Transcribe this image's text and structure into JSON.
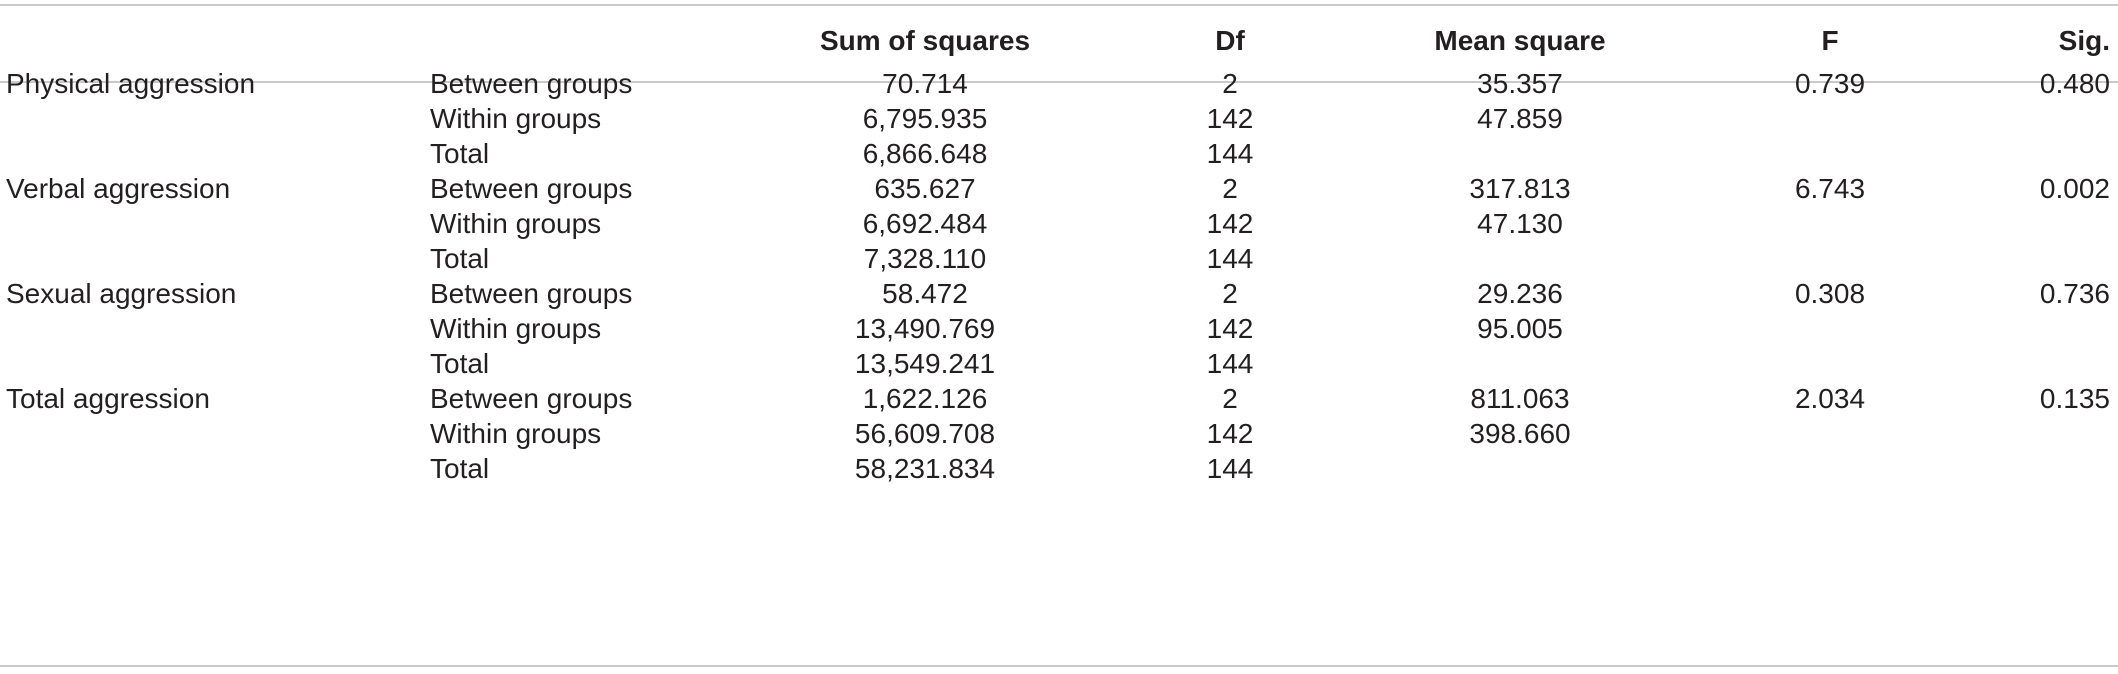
{
  "table": {
    "headers": {
      "measure": "",
      "source": "",
      "sum_of_squares": "Sum of squares",
      "df": "Df",
      "mean_square": "Mean square",
      "f": "F",
      "sig": "Sig."
    },
    "rows": [
      {
        "measure": "Physical aggression",
        "source": "Between groups",
        "ss": "70.714",
        "df": "2",
        "ms": "35.357",
        "f": "0.739",
        "sig": "0.480"
      },
      {
        "measure": "",
        "source": "Within groups",
        "ss": "6,795.935",
        "df": "142",
        "ms": "47.859",
        "f": "",
        "sig": ""
      },
      {
        "measure": "",
        "source": "Total",
        "ss": "6,866.648",
        "df": "144",
        "ms": "",
        "f": "",
        "sig": ""
      },
      {
        "measure": "Verbal aggression",
        "source": "Between groups",
        "ss": "635.627",
        "df": "2",
        "ms": "317.813",
        "f": "6.743",
        "sig": "0.002"
      },
      {
        "measure": "",
        "source": "Within groups",
        "ss": "6,692.484",
        "df": "142",
        "ms": "47.130",
        "f": "",
        "sig": ""
      },
      {
        "measure": "",
        "source": "Total",
        "ss": "7,328.110",
        "df": "144",
        "ms": "",
        "f": "",
        "sig": ""
      },
      {
        "measure": "Sexual aggression",
        "source": "Between groups",
        "ss": "58.472",
        "df": "2",
        "ms": "29.236",
        "f": "0.308",
        "sig": "0.736"
      },
      {
        "measure": "",
        "source": "Within groups",
        "ss": "13,490.769",
        "df": "142",
        "ms": "95.005",
        "f": "",
        "sig": ""
      },
      {
        "measure": "",
        "source": "Total",
        "ss": "13,549.241",
        "df": "144",
        "ms": "",
        "f": "",
        "sig": ""
      },
      {
        "measure": "Total aggression",
        "source": "Between groups",
        "ss": "1,622.126",
        "df": "2",
        "ms": "811.063",
        "f": "2.034",
        "sig": "0.135"
      },
      {
        "measure": "",
        "source": "Within groups",
        "ss": "56,609.708",
        "df": "142",
        "ms": "398.660",
        "f": "",
        "sig": ""
      },
      {
        "measure": "",
        "source": "Total",
        "ss": "58,231.834",
        "df": "144",
        "ms": "",
        "f": "",
        "sig": ""
      }
    ]
  }
}
